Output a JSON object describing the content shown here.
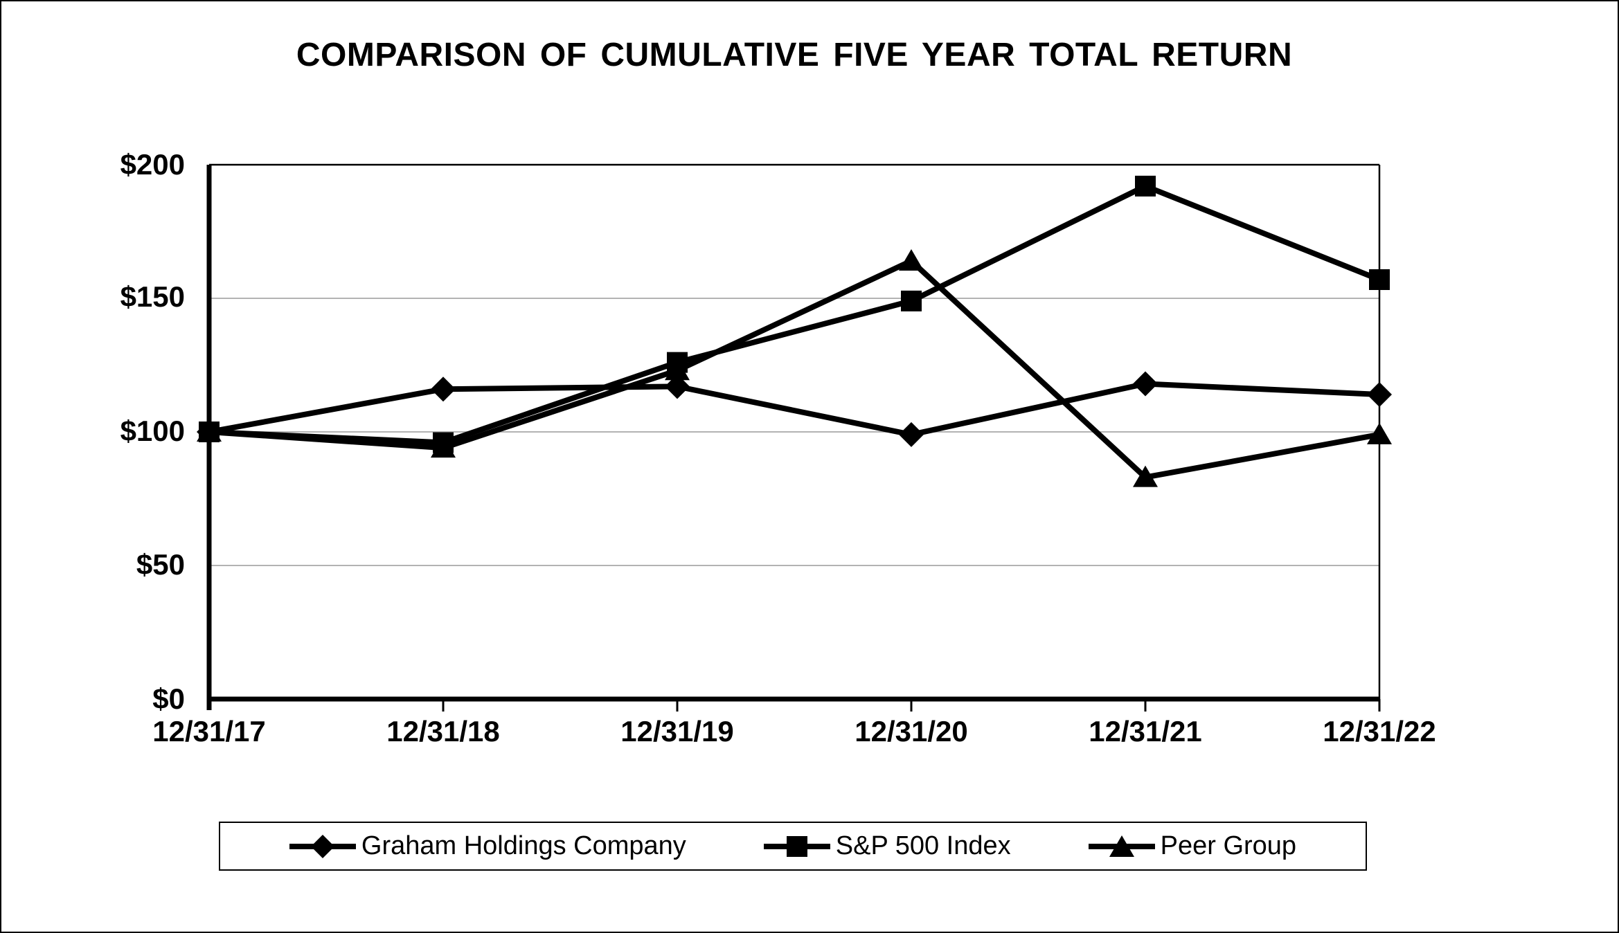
{
  "title": "COMPARISON OF CUMULATIVE FIVE YEAR TOTAL RETURN",
  "chart_data": {
    "type": "line",
    "x": [
      "12/31/17",
      "12/31/18",
      "12/31/19",
      "12/31/20",
      "12/31/21",
      "12/31/22"
    ],
    "y_ticks": [
      "$0",
      "$50",
      "$100",
      "$150",
      "$200"
    ],
    "ylim": [
      0,
      200
    ],
    "y_tick_interval": 50,
    "grid": "horizontal gridlines at each $50 tick",
    "legend_position": "boxed legend centered below chart",
    "series": [
      {
        "name": "Graham Holdings Company",
        "marker": "diamond",
        "values": [
          100,
          116,
          117,
          99,
          118,
          114
        ]
      },
      {
        "name": "S&P 500 Index",
        "marker": "square",
        "values": [
          100,
          96,
          126,
          149,
          192,
          157
        ]
      },
      {
        "name": "Peer Group",
        "marker": "triangle",
        "values": [
          100,
          94,
          123,
          164,
          83,
          99
        ]
      }
    ],
    "colors": {
      "line": "#000000",
      "gridline": "#b3b3b3",
      "background": "#ffffff",
      "text": "#000000"
    }
  }
}
